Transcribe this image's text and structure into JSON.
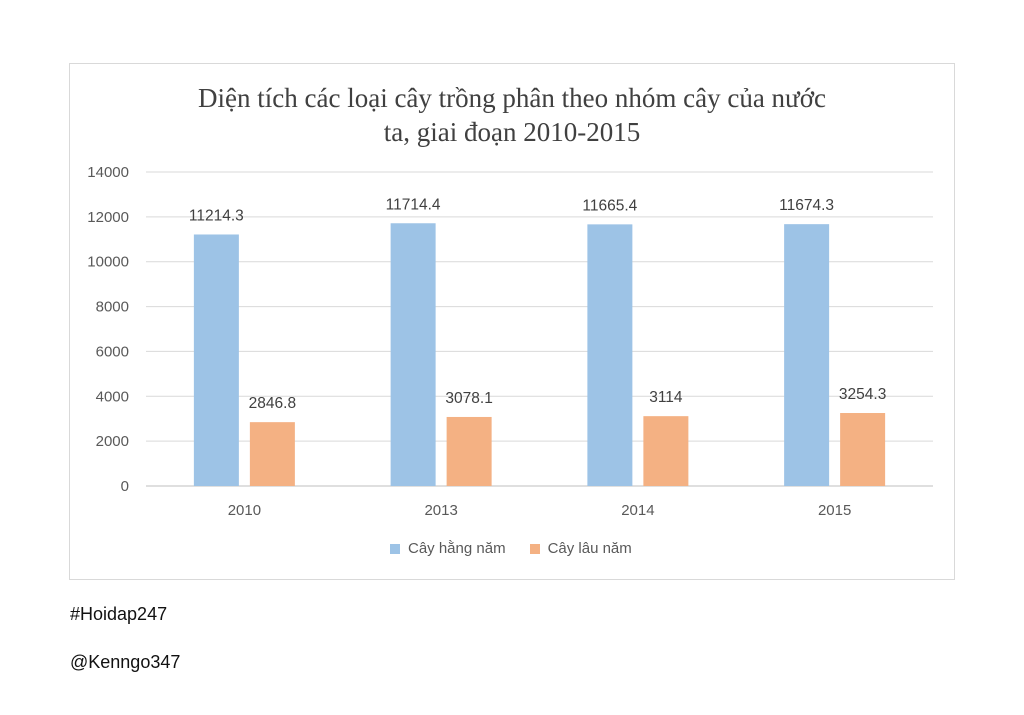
{
  "footer": {
    "hashtag": "#Hoidap247",
    "handle": "@Kenngo347"
  },
  "chart_data": {
    "type": "bar",
    "title_line1": "Diện tích các loại cây trồng phân theo nhóm cây của nước",
    "title_line2": "ta, giai đoạn 2010-2015",
    "categories": [
      "2010",
      "2013",
      "2014",
      "2015"
    ],
    "series": [
      {
        "name": "Cây hằng năm",
        "color": "#9dc3e6",
        "values": [
          11214.3,
          11714.4,
          11665.4,
          11674.3
        ],
        "labels": [
          "11214.3",
          "11714.4",
          "11665.4",
          "11674.3"
        ]
      },
      {
        "name": "Cây lâu năm",
        "color": "#f4b183",
        "values": [
          2846.8,
          3078.1,
          3114,
          3254.3
        ],
        "labels": [
          "2846.8",
          "3078.1",
          "3114",
          "3254.3"
        ]
      }
    ],
    "ylim": [
      0,
      14000
    ],
    "yticks": [
      "0",
      "2000",
      "4000",
      "6000",
      "8000",
      "10000",
      "12000",
      "14000"
    ],
    "grid": true,
    "legend_position": "bottom"
  }
}
